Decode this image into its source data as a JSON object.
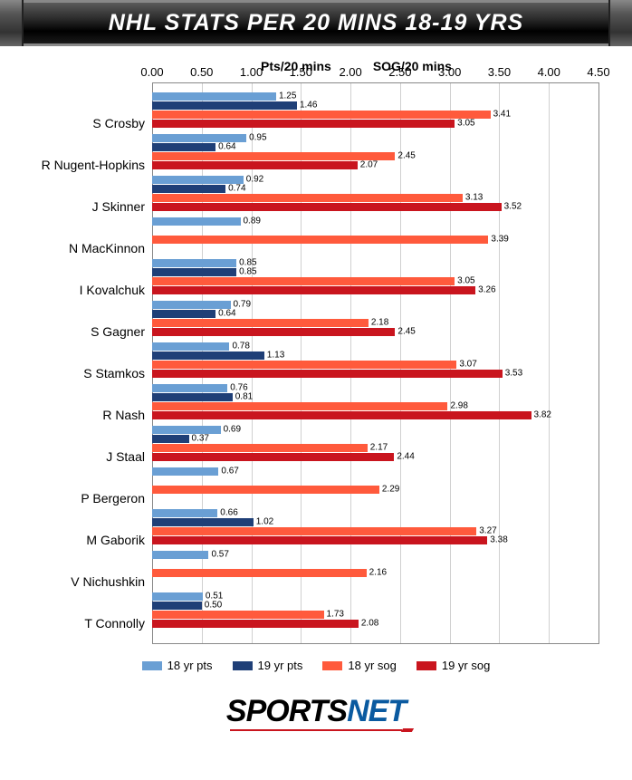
{
  "title": "NHL STATS PER 20 MINS 18-19 YRS",
  "series_headers": {
    "pts": "Pts/20 mins",
    "sog": "SOG/20 mins"
  },
  "axis": {
    "min": 0,
    "max": 4.5,
    "step": 0.5
  },
  "players": [
    {
      "name": "S Crosby",
      "p18": 1.25,
      "p19": 1.46,
      "s18": 3.41,
      "s19": 3.05
    },
    {
      "name": "R Nugent-Hopkins",
      "p18": 0.95,
      "p19": 0.64,
      "s18": 2.45,
      "s19": 2.07
    },
    {
      "name": "J Skinner",
      "p18": 0.92,
      "p19": 0.74,
      "s18": 3.13,
      "s19": 3.52
    },
    {
      "name": "N MacKinnon",
      "p18": 0.89,
      "p19": null,
      "s18": 3.39,
      "s19": null
    },
    {
      "name": "I Kovalchuk",
      "p18": 0.85,
      "p19": 0.85,
      "s18": 3.05,
      "s19": 3.26
    },
    {
      "name": "S Gagner",
      "p18": 0.79,
      "p19": 0.64,
      "s18": 2.18,
      "s19": 2.45
    },
    {
      "name": "S Stamkos",
      "p18": 0.78,
      "p19": 1.13,
      "s18": 3.07,
      "s19": 3.53
    },
    {
      "name": "R Nash",
      "p18": 0.76,
      "p19": 0.81,
      "s18": 2.98,
      "s19": 3.82
    },
    {
      "name": "J Staal",
      "p18": 0.69,
      "p19": 0.37,
      "s18": 2.17,
      "s19": 2.44
    },
    {
      "name": "P Bergeron",
      "p18": 0.67,
      "p19": null,
      "s18": 2.29,
      "s19": null
    },
    {
      "name": "M Gaborik",
      "p18": 0.66,
      "p19": 1.02,
      "s18": 3.27,
      "s19": 3.38
    },
    {
      "name": "V Nichushkin",
      "p18": 0.57,
      "p19": null,
      "s18": 2.16,
      "s19": null
    },
    {
      "name": "T Connolly",
      "p18": 0.51,
      "p19": 0.5,
      "s18": 1.73,
      "s19": 2.08
    }
  ],
  "colors": {
    "p18": "#6a9fd4",
    "p19": "#1f3f77",
    "s18": "#ff5a3c",
    "s19": "#c9151e",
    "grid": "#d0d0d0",
    "frame": "#888888"
  },
  "legend": {
    "p18": "18 yr pts",
    "p19": "19 yr pts",
    "s18": "18 yr sog",
    "s19": "19 yr sog"
  },
  "logo": {
    "part1": "SPORTS",
    "part2": "NET"
  }
}
